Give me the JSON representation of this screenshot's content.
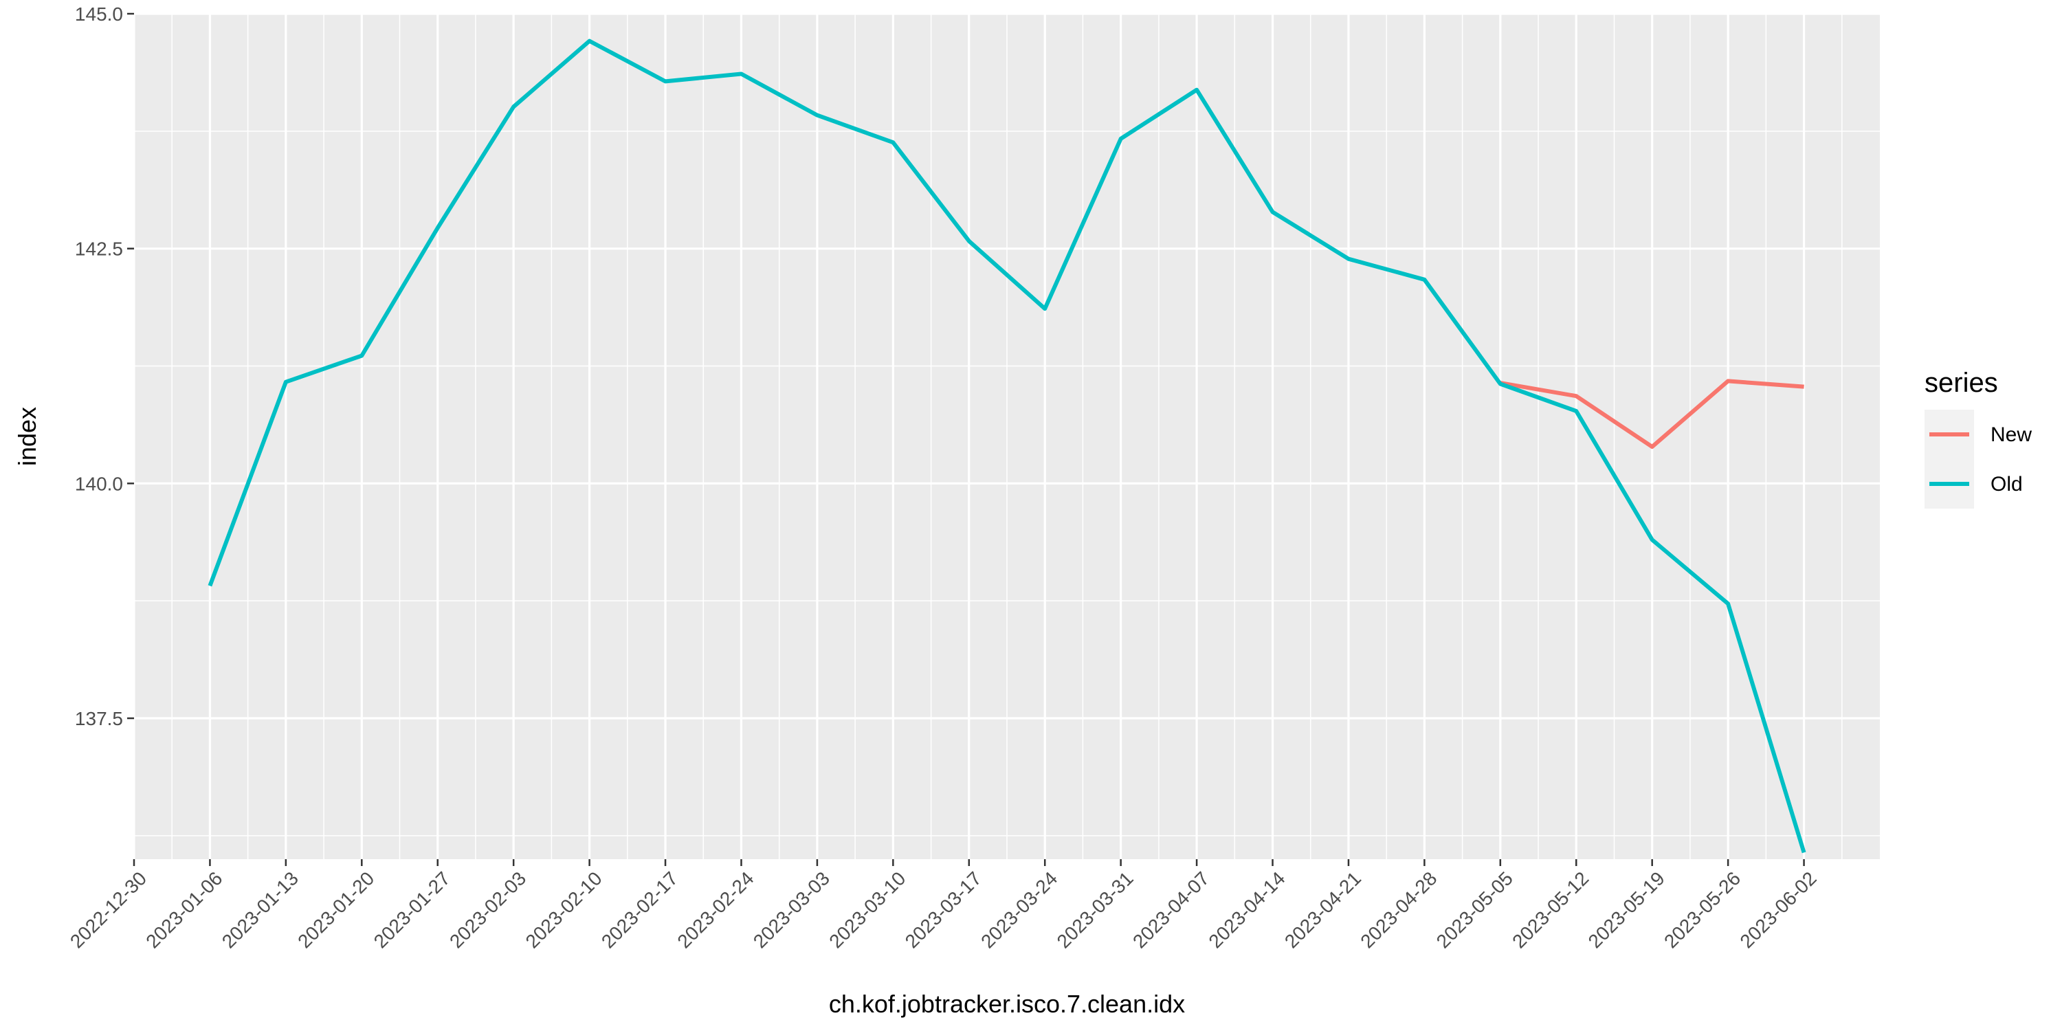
{
  "chart_data": {
    "type": "line",
    "xlabel": "ch.kof.jobtracker.isco.7.clean.idx",
    "ylabel": "index",
    "xlim": [
      "2022-12-30",
      "2023-06-09"
    ],
    "ylim": [
      136.0,
      145.0
    ],
    "x_ticks": [
      "2022-12-30",
      "2023-01-06",
      "2023-01-13",
      "2023-01-20",
      "2023-01-27",
      "2023-02-03",
      "2023-02-10",
      "2023-02-17",
      "2023-02-24",
      "2023-03-03",
      "2023-03-10",
      "2023-03-17",
      "2023-03-24",
      "2023-03-31",
      "2023-04-07",
      "2023-04-14",
      "2023-04-21",
      "2023-04-28",
      "2023-05-05",
      "2023-05-12",
      "2023-05-19",
      "2023-05-26",
      "2023-06-02"
    ],
    "y_ticks": [
      "137.5",
      "140.0",
      "142.5",
      "145.0"
    ],
    "y_tick_values": [
      137.5,
      140.0,
      142.5,
      145.0
    ],
    "grid": true,
    "legend": {
      "title": "series",
      "position": "right"
    },
    "series": [
      {
        "name": "New",
        "color": "#F8766D",
        "x": [
          "2023-05-05",
          "2023-05-12",
          "2023-05-19",
          "2023-05-26",
          "2023-06-02"
        ],
        "values": [
          141.07,
          140.93,
          140.39,
          141.09,
          141.03
        ]
      },
      {
        "name": "Old",
        "color": "#00BFC4",
        "x": [
          "2023-01-06",
          "2023-01-13",
          "2023-01-20",
          "2023-01-27",
          "2023-02-03",
          "2023-02-10",
          "2023-02-17",
          "2023-02-24",
          "2023-03-03",
          "2023-03-10",
          "2023-03-17",
          "2023-03-24",
          "2023-03-31",
          "2023-04-07",
          "2023-04-14",
          "2023-04-21",
          "2023-04-28",
          "2023-05-05",
          "2023-05-12",
          "2023-05-19",
          "2023-05-26",
          "2023-06-02"
        ],
        "values": [
          138.91,
          141.08,
          141.36,
          142.72,
          144.01,
          144.71,
          144.28,
          144.36,
          143.92,
          143.63,
          142.58,
          141.86,
          143.67,
          144.19,
          142.89,
          142.39,
          142.17,
          141.06,
          140.77,
          139.4,
          138.72,
          136.07
        ]
      }
    ]
  }
}
